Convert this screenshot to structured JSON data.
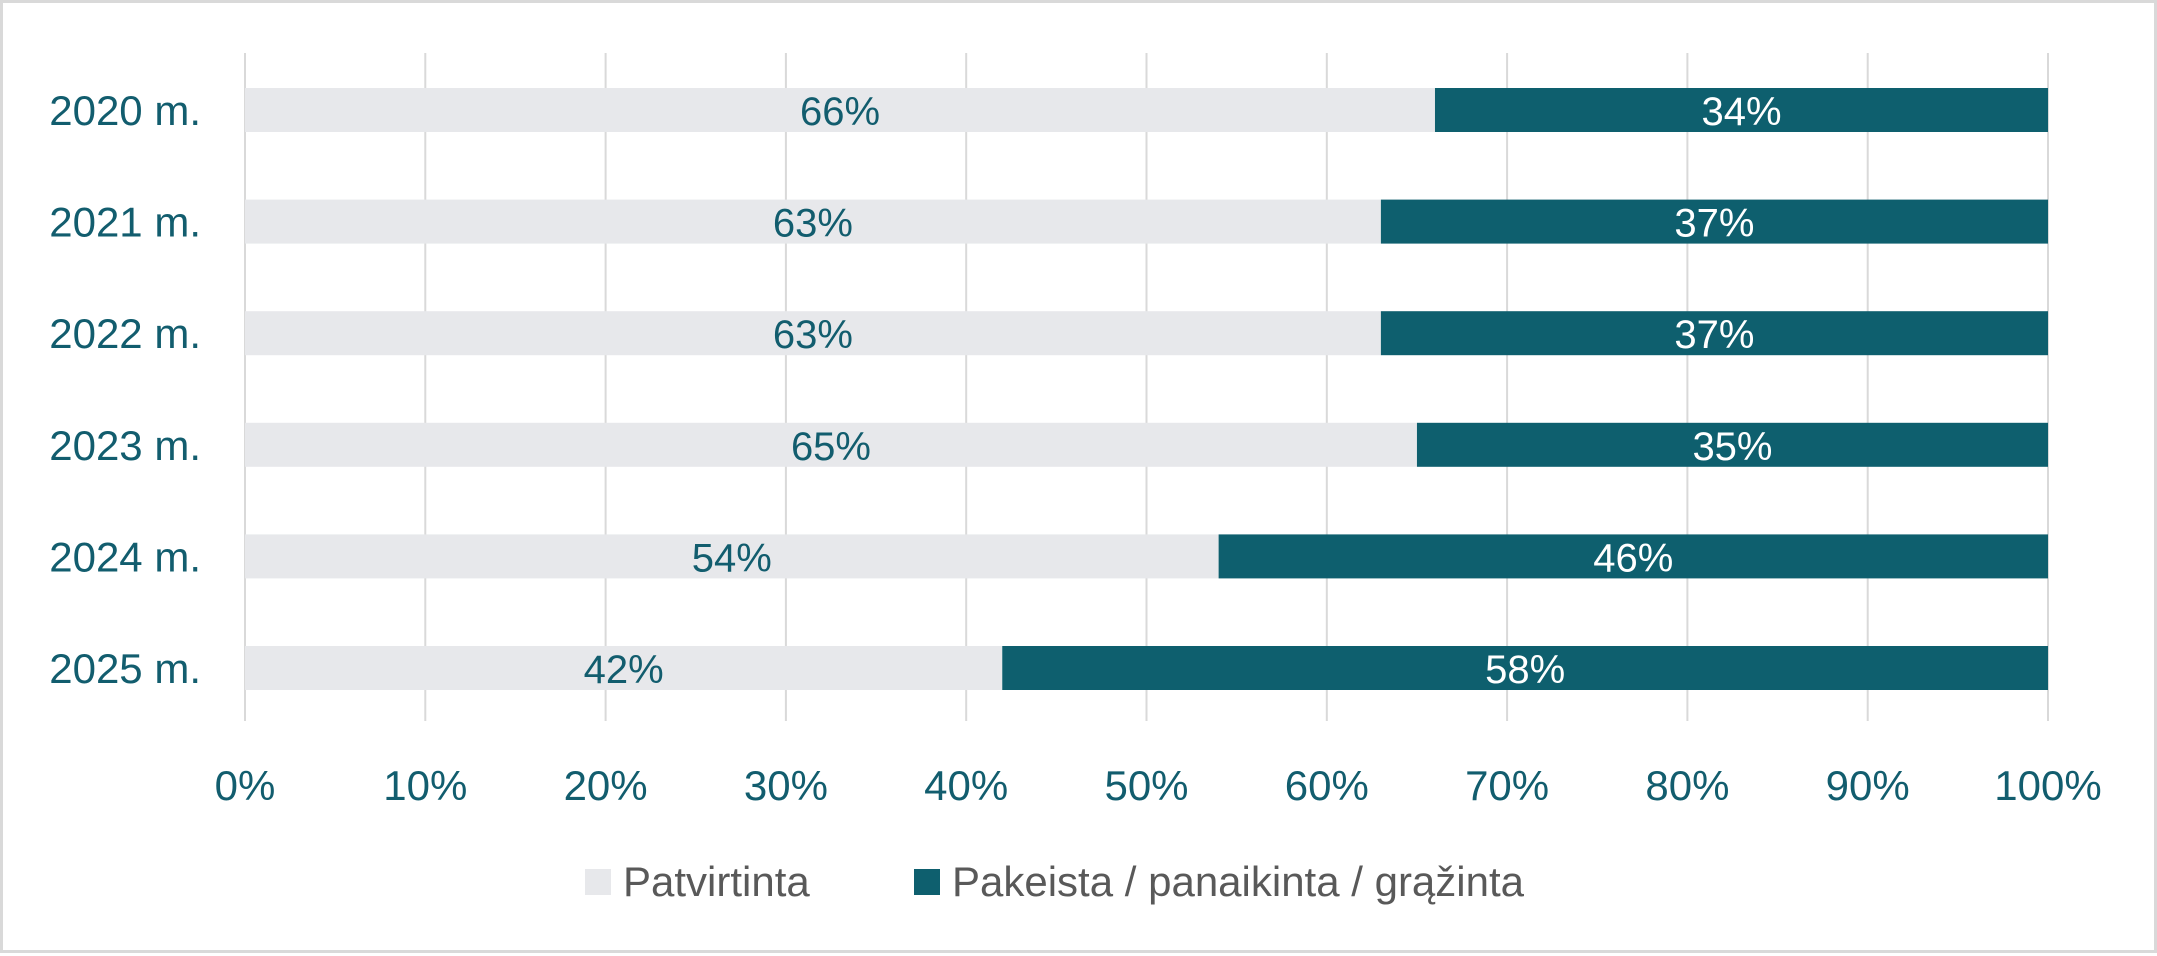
{
  "chart_data": {
    "type": "bar",
    "orientation": "horizontal",
    "stacked": true,
    "categories": [
      "2020 m.",
      "2021 m.",
      "2022 m.",
      "2023 m.",
      "2024 m.",
      "2025 m."
    ],
    "series": [
      {
        "name": "Patvirtinta",
        "values": [
          66,
          63,
          63,
          65,
          54,
          42
        ],
        "labels": [
          "66%",
          "63%",
          "63%",
          "65%",
          "54%",
          "42%"
        ],
        "color": "#e7e8eb",
        "label_color": "#125d6e"
      },
      {
        "name": "Pakeista / panaikinta / grąžinta",
        "values": [
          34,
          37,
          37,
          35,
          46,
          58
        ],
        "labels": [
          "34%",
          "37%",
          "37%",
          "35%",
          "46%",
          "58%"
        ],
        "color": "#0e5f6e",
        "label_color": "#ffffff"
      }
    ],
    "x_ticks": [
      0,
      10,
      20,
      30,
      40,
      50,
      60,
      70,
      80,
      90,
      100
    ],
    "x_tick_labels": [
      "0%",
      "10%",
      "20%",
      "30%",
      "40%",
      "50%",
      "60%",
      "70%",
      "80%",
      "90%",
      "100%"
    ],
    "xlim": [
      0,
      100
    ],
    "grid": true,
    "legend_position": "bottom",
    "axis_text_color": "#125d6e",
    "legend_text_color": "#595959",
    "grid_color": "#d9d9d9"
  }
}
